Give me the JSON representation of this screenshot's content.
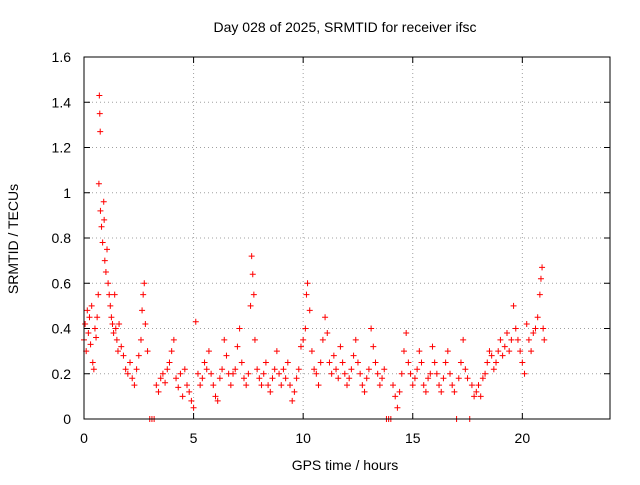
{
  "chart_data": {
    "type": "scatter",
    "title": "Day 028 of 2025, SRMTID for receiver ifsc",
    "xlabel": "GPS time / hours",
    "ylabel": "SRMTID / TECUs",
    "xlim": [
      0,
      24
    ],
    "ylim": [
      0,
      1.6
    ],
    "x_ticks": [
      0,
      5,
      10,
      15,
      20
    ],
    "x_tick_labels": [
      "0",
      "5",
      "10",
      "15",
      "20"
    ],
    "y_ticks": [
      0,
      0.2,
      0.4,
      0.6,
      0.8,
      1,
      1.2,
      1.4,
      1.6
    ],
    "y_tick_labels": [
      "0",
      "0.2",
      "0.4",
      "0.6",
      "0.8",
      "1",
      "1.2",
      "1.4",
      "1.6"
    ],
    "grid": true,
    "marker": "+",
    "color": "#ff0000",
    "series": [
      {
        "name": "SRMTID",
        "points": [
          [
            0.0,
            0.35
          ],
          [
            0.05,
            0.42
          ],
          [
            0.1,
            0.3
          ],
          [
            0.15,
            0.48
          ],
          [
            0.2,
            0.38
          ],
          [
            0.25,
            0.45
          ],
          [
            0.3,
            0.33
          ],
          [
            0.35,
            0.5
          ],
          [
            0.4,
            0.25
          ],
          [
            0.45,
            0.22
          ],
          [
            0.5,
            0.4
          ],
          [
            0.55,
            0.36
          ],
          [
            0.6,
            0.45
          ],
          [
            0.65,
            0.55
          ],
          [
            0.68,
            1.04
          ],
          [
            0.7,
            1.43
          ],
          [
            0.72,
            1.35
          ],
          [
            0.74,
            1.27
          ],
          [
            0.75,
            0.92
          ],
          [
            0.8,
            0.85
          ],
          [
            0.85,
            0.78
          ],
          [
            0.9,
            0.96
          ],
          [
            0.92,
            0.88
          ],
          [
            0.95,
            0.7
          ],
          [
            1.0,
            0.65
          ],
          [
            1.05,
            0.75
          ],
          [
            1.1,
            0.6
          ],
          [
            1.15,
            0.55
          ],
          [
            1.2,
            0.5
          ],
          [
            1.25,
            0.45
          ],
          [
            1.3,
            0.42
          ],
          [
            1.35,
            0.38
          ],
          [
            1.4,
            0.55
          ],
          [
            1.45,
            0.4
          ],
          [
            1.5,
            0.35
          ],
          [
            1.55,
            0.3
          ],
          [
            1.6,
            0.42
          ],
          [
            1.7,
            0.32
          ],
          [
            1.8,
            0.28
          ],
          [
            1.9,
            0.22
          ],
          [
            2.0,
            0.2
          ],
          [
            2.1,
            0.25
          ],
          [
            2.2,
            0.18
          ],
          [
            2.3,
            0.15
          ],
          [
            2.4,
            0.22
          ],
          [
            2.5,
            0.28
          ],
          [
            2.6,
            0.35
          ],
          [
            2.65,
            0.48
          ],
          [
            2.7,
            0.55
          ],
          [
            2.75,
            0.6
          ],
          [
            2.8,
            0.42
          ],
          [
            2.9,
            0.3
          ],
          [
            3.0,
            0.0
          ],
          [
            3.1,
            0.0
          ],
          [
            3.2,
            0.0
          ],
          [
            3.3,
            0.15
          ],
          [
            3.4,
            0.12
          ],
          [
            3.5,
            0.18
          ],
          [
            3.6,
            0.2
          ],
          [
            3.7,
            0.16
          ],
          [
            3.8,
            0.22
          ],
          [
            3.9,
            0.25
          ],
          [
            4.0,
            0.3
          ],
          [
            4.1,
            0.35
          ],
          [
            4.2,
            0.18
          ],
          [
            4.3,
            0.14
          ],
          [
            4.4,
            0.2
          ],
          [
            4.5,
            0.1
          ],
          [
            4.6,
            0.22
          ],
          [
            4.7,
            0.15
          ],
          [
            4.8,
            0.12
          ],
          [
            4.9,
            0.08
          ],
          [
            5.0,
            0.05
          ],
          [
            5.1,
            0.43
          ],
          [
            5.2,
            0.2
          ],
          [
            5.3,
            0.15
          ],
          [
            5.4,
            0.18
          ],
          [
            5.5,
            0.25
          ],
          [
            5.6,
            0.22
          ],
          [
            5.7,
            0.3
          ],
          [
            5.8,
            0.2
          ],
          [
            5.9,
            0.15
          ],
          [
            6.0,
            0.1
          ],
          [
            6.1,
            0.08
          ],
          [
            6.2,
            0.18
          ],
          [
            6.3,
            0.22
          ],
          [
            6.4,
            0.35
          ],
          [
            6.5,
            0.28
          ],
          [
            6.6,
            0.2
          ],
          [
            6.7,
            0.15
          ],
          [
            6.8,
            0.2
          ],
          [
            6.9,
            0.22
          ],
          [
            7.0,
            0.32
          ],
          [
            7.1,
            0.4
          ],
          [
            7.2,
            0.25
          ],
          [
            7.3,
            0.18
          ],
          [
            7.4,
            0.15
          ],
          [
            7.5,
            0.2
          ],
          [
            7.6,
            0.5
          ],
          [
            7.65,
            0.72
          ],
          [
            7.7,
            0.64
          ],
          [
            7.75,
            0.55
          ],
          [
            7.8,
            0.35
          ],
          [
            7.9,
            0.22
          ],
          [
            8.0,
            0.18
          ],
          [
            8.1,
            0.15
          ],
          [
            8.2,
            0.2
          ],
          [
            8.3,
            0.25
          ],
          [
            8.4,
            0.15
          ],
          [
            8.5,
            0.12
          ],
          [
            8.6,
            0.18
          ],
          [
            8.7,
            0.22
          ],
          [
            8.8,
            0.3
          ],
          [
            8.9,
            0.2
          ],
          [
            9.0,
            0.15
          ],
          [
            9.1,
            0.22
          ],
          [
            9.2,
            0.18
          ],
          [
            9.3,
            0.25
          ],
          [
            9.4,
            0.15
          ],
          [
            9.5,
            0.08
          ],
          [
            9.6,
            0.12
          ],
          [
            9.7,
            0.18
          ],
          [
            9.8,
            0.22
          ],
          [
            9.9,
            0.32
          ],
          [
            10.0,
            0.35
          ],
          [
            10.1,
            0.4
          ],
          [
            10.15,
            0.55
          ],
          [
            10.2,
            0.6
          ],
          [
            10.3,
            0.48
          ],
          [
            10.4,
            0.3
          ],
          [
            10.5,
            0.22
          ],
          [
            10.6,
            0.2
          ],
          [
            10.7,
            0.15
          ],
          [
            10.8,
            0.25
          ],
          [
            10.9,
            0.35
          ],
          [
            11.0,
            0.45
          ],
          [
            11.1,
            0.38
          ],
          [
            11.2,
            0.25
          ],
          [
            11.3,
            0.2
          ],
          [
            11.4,
            0.28
          ],
          [
            11.5,
            0.22
          ],
          [
            11.6,
            0.18
          ],
          [
            11.7,
            0.32
          ],
          [
            11.8,
            0.25
          ],
          [
            11.9,
            0.2
          ],
          [
            12.0,
            0.15
          ],
          [
            12.1,
            0.18
          ],
          [
            12.2,
            0.22
          ],
          [
            12.3,
            0.28
          ],
          [
            12.4,
            0.35
          ],
          [
            12.5,
            0.25
          ],
          [
            12.6,
            0.2
          ],
          [
            12.7,
            0.15
          ],
          [
            12.8,
            0.12
          ],
          [
            12.9,
            0.18
          ],
          [
            13.0,
            0.22
          ],
          [
            13.1,
            0.4
          ],
          [
            13.2,
            0.32
          ],
          [
            13.3,
            0.25
          ],
          [
            13.4,
            0.2
          ],
          [
            13.5,
            0.15
          ],
          [
            13.6,
            0.18
          ],
          [
            13.7,
            0.22
          ],
          [
            13.8,
            0.0
          ],
          [
            13.9,
            0.0
          ],
          [
            14.0,
            0.0
          ],
          [
            14.1,
            0.15
          ],
          [
            14.2,
            0.1
          ],
          [
            14.3,
            0.05
          ],
          [
            14.4,
            0.12
          ],
          [
            14.5,
            0.2
          ],
          [
            14.6,
            0.3
          ],
          [
            14.7,
            0.38
          ],
          [
            14.8,
            0.25
          ],
          [
            14.9,
            0.2
          ],
          [
            15.0,
            0.15
          ],
          [
            15.1,
            0.18
          ],
          [
            15.2,
            0.22
          ],
          [
            15.3,
            0.3
          ],
          [
            15.4,
            0.25
          ],
          [
            15.5,
            0.15
          ],
          [
            15.6,
            0.12
          ],
          [
            15.7,
            0.18
          ],
          [
            15.8,
            0.2
          ],
          [
            15.9,
            0.32
          ],
          [
            16.0,
            0.25
          ],
          [
            16.1,
            0.2
          ],
          [
            16.2,
            0.15
          ],
          [
            16.3,
            0.12
          ],
          [
            16.4,
            0.18
          ],
          [
            16.5,
            0.25
          ],
          [
            16.6,
            0.3
          ],
          [
            16.7,
            0.2
          ],
          [
            16.8,
            0.15
          ],
          [
            16.9,
            0.12
          ],
          [
            17.0,
            0.0
          ],
          [
            17.1,
            0.18
          ],
          [
            17.2,
            0.25
          ],
          [
            17.3,
            0.35
          ],
          [
            17.4,
            0.22
          ],
          [
            17.5,
            0.18
          ],
          [
            17.6,
            0.0
          ],
          [
            17.7,
            0.15
          ],
          [
            17.8,
            0.1
          ],
          [
            17.9,
            0.12
          ],
          [
            18.0,
            0.15
          ],
          [
            18.1,
            0.1
          ],
          [
            18.2,
            0.18
          ],
          [
            18.3,
            0.2
          ],
          [
            18.4,
            0.25
          ],
          [
            18.5,
            0.3
          ],
          [
            18.6,
            0.28
          ],
          [
            18.7,
            0.22
          ],
          [
            18.8,
            0.25
          ],
          [
            18.9,
            0.3
          ],
          [
            19.0,
            0.35
          ],
          [
            19.1,
            0.28
          ],
          [
            19.2,
            0.32
          ],
          [
            19.3,
            0.38
          ],
          [
            19.4,
            0.3
          ],
          [
            19.5,
            0.35
          ],
          [
            19.6,
            0.5
          ],
          [
            19.7,
            0.4
          ],
          [
            19.8,
            0.35
          ],
          [
            19.9,
            0.3
          ],
          [
            20.0,
            0.25
          ],
          [
            20.1,
            0.2
          ],
          [
            20.2,
            0.42
          ],
          [
            20.3,
            0.35
          ],
          [
            20.4,
            0.3
          ],
          [
            20.5,
            0.38
          ],
          [
            20.6,
            0.4
          ],
          [
            20.7,
            0.45
          ],
          [
            20.8,
            0.55
          ],
          [
            20.85,
            0.62
          ],
          [
            20.9,
            0.67
          ],
          [
            20.95,
            0.4
          ],
          [
            21.0,
            0.35
          ]
        ]
      }
    ]
  }
}
